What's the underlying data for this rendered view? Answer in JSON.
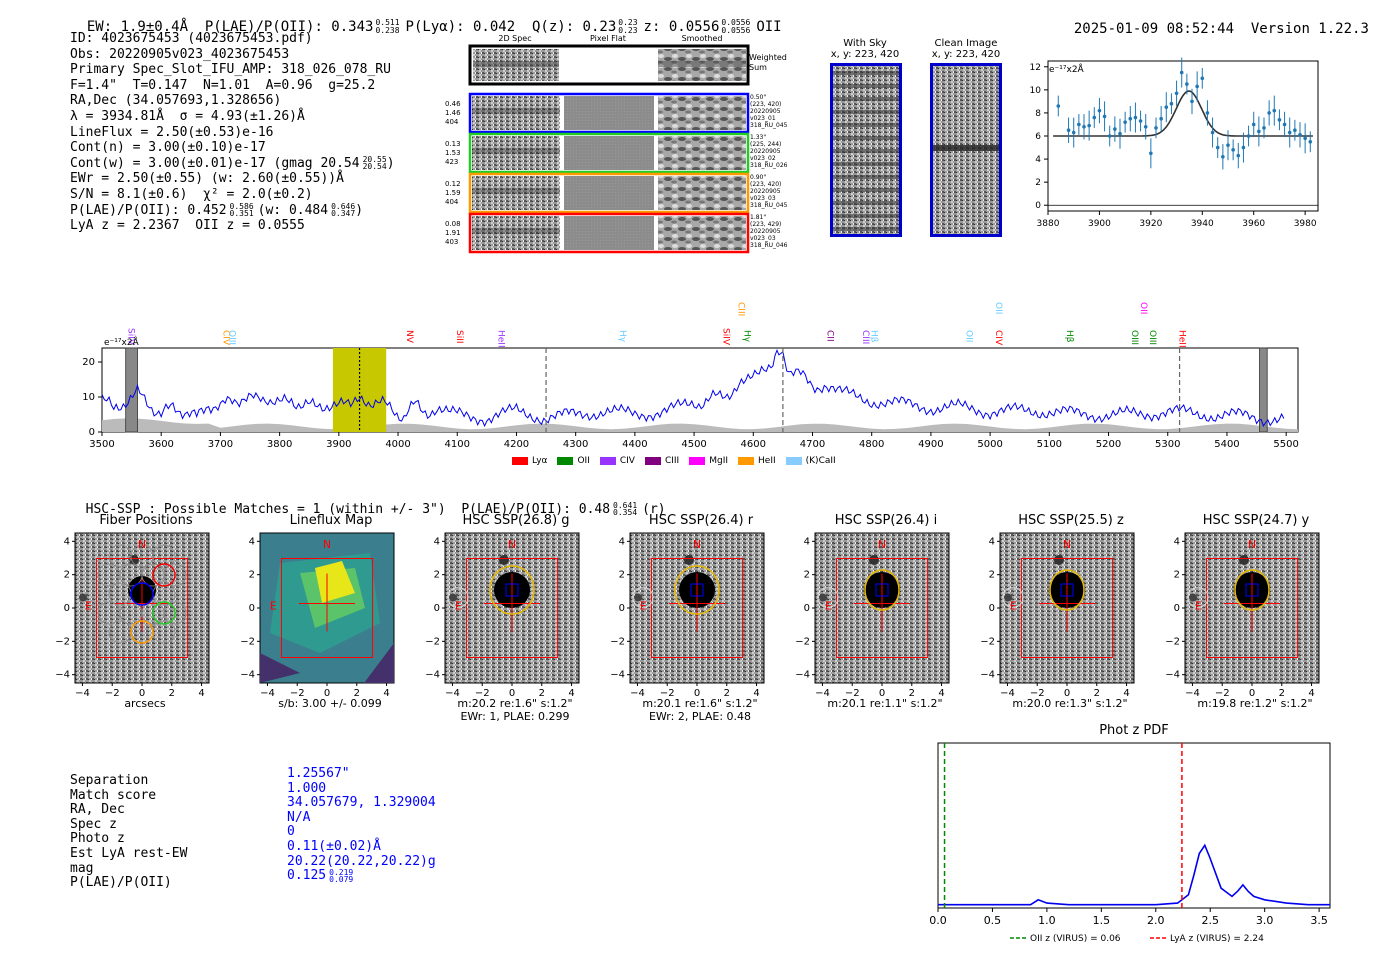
{
  "header": {
    "ew": "EW: 1.9±0.4Å",
    "plae": "P(LAE)/P(OII): 0.343",
    "plae_hi": "0.511",
    "plae_lo": "0.238",
    "plya": "P(Lyα): 0.042",
    "q": "Q(z): 0.23",
    "q_hi": "0.23",
    "q_lo": "0.23",
    "z": "z: 0.0556",
    "z_hi": "0.0556",
    "z_lo": "0.0556",
    "z_line": "OII",
    "datetime": "2025-01-09 08:52:44",
    "version": "Version 1.22.3"
  },
  "info": {
    "id": "ID: 4023675453 (4023675453.pdf)",
    "obs": "Obs: 20220905v023_4023675453",
    "spec": "Primary Spec_Slot_IFU_AMP: 318_026_078_RU",
    "fiber": "F=1.4\"  T=0.147  N=1.01  A=0.96  g=25.2",
    "radec": "RA,Dec (34.057693,1.328656)",
    "lambda": "λ = 3934.81Å  σ = 4.93(±1.26)Å",
    "lineflux": "LineFlux = 2.50(±0.53)e-16",
    "contn": "Cont(n) = 3.00(±0.10)e-17",
    "contw": "Cont(w) = 3.00(±0.01)e-17 (gmag 20.54",
    "contw_hi": "20.55",
    "contw_lo": "20.54",
    "ewr": "EWr = 2.50(±0.55) (w: 2.60(±0.55))Å",
    "sn": "S/N = 8.1(±0.6)  χ² = 2.0(±0.2)",
    "plae": "P(LAE)/P(OII): 0.452",
    "plae_hi": "0.586",
    "plae_lo": "0.351",
    "plae_w": "(w: 0.484",
    "plae_w_hi": "0.646",
    "plae_w_lo": "0.347",
    "lyaz": "LyA z = 2.2367  OII z = 0.0555"
  },
  "cutouts": {
    "col_titles": [
      "2D Spec",
      "Pixel Flat",
      "Smoothed"
    ],
    "weighted_sum": "Weighted Sum",
    "rows": [
      {
        "nums": [
          "0.46",
          "1.46",
          "404"
        ],
        "meta": [
          "0.50\"",
          "(223, 420)",
          "20220905",
          "v023_01",
          "318_RU_045"
        ],
        "color": "#0000ff"
      },
      {
        "nums": [
          "0.13",
          "1.53",
          "423"
        ],
        "meta": [
          "1.33\"",
          "(225, 244)",
          "20220905",
          "v023_02",
          "318_RU_026"
        ],
        "color": "#22cc22"
      },
      {
        "nums": [
          "0.12",
          "1.59",
          "404"
        ],
        "meta": [
          "0.90\"",
          "(223, 420)",
          "20220905",
          "v023_03",
          "318_RU_045"
        ],
        "color": "#ff9900"
      },
      {
        "nums": [
          "0.08",
          "1.91",
          "403"
        ],
        "meta": [
          "1.81\"",
          "(223, 429)",
          "20220905",
          "v023_03",
          "318_RU_046"
        ],
        "color": "#ff0000"
      }
    ]
  },
  "sky": {
    "with_sky_title": "With Sky",
    "with_sky_xy": "x, y: 223, 420",
    "clean_title": "Clean Image",
    "clean_xy": "x, y: 223, 420"
  },
  "fit_chart": {
    "ylabel": "e⁻¹⁷x2Å",
    "xticks": [
      "3880",
      "3900",
      "3920",
      "3940",
      "3960",
      "3980"
    ],
    "yticks": [
      "0",
      "2",
      "4",
      "6",
      "8",
      "10",
      "12"
    ]
  },
  "spectrum": {
    "ylabel": "e⁻¹⁷x2Å",
    "xticks": [
      "3500",
      "3600",
      "3700",
      "3800",
      "3900",
      "4000",
      "4100",
      "4200",
      "4300",
      "4400",
      "4500",
      "4600",
      "4700",
      "4800",
      "4900",
      "5000",
      "5100",
      "5200",
      "5300",
      "5400",
      "5500"
    ],
    "yticks": [
      "0",
      "10",
      "20"
    ],
    "lines": [
      {
        "label": "SiIV",
        "color": "#9933ff"
      },
      {
        "label": "CIV",
        "color": "#ff9900"
      },
      {
        "label": "OIII",
        "color": "#66ccff"
      },
      {
        "label": "NV",
        "color": "#ff0000"
      },
      {
        "label": "SiII",
        "color": "#ff0000"
      },
      {
        "label": "HeII",
        "color": "#9933ff"
      },
      {
        "label": "Hγ",
        "color": "#66ccff"
      },
      {
        "label": "SiIV",
        "color": "#ff0000"
      },
      {
        "label": "CIII",
        "color": "#ff9900"
      },
      {
        "label": "Hγ",
        "color": "#008800"
      },
      {
        "label": "CII",
        "color": "#800080"
      },
      {
        "label": "CIII",
        "color": "#9933ff"
      },
      {
        "label": "Hβ",
        "color": "#66ccff"
      },
      {
        "label": "OII",
        "color": "#66ccff"
      },
      {
        "label": "CIV",
        "color": "#ff0000"
      },
      {
        "label": "OII",
        "color": "#66ccff"
      },
      {
        "label": "Hβ",
        "color": "#008800"
      },
      {
        "label": "OIII",
        "color": "#008800"
      },
      {
        "label": "OII",
        "color": "#ff00ff"
      },
      {
        "label": "OIII",
        "color": "#008800"
      },
      {
        "label": "HeII",
        "color": "#ff0000"
      }
    ],
    "legend": [
      {
        "label": "Lyα",
        "color": "#ff0000"
      },
      {
        "label": "OII",
        "color": "#008800"
      },
      {
        "label": "CIV",
        "color": "#9933ff"
      },
      {
        "label": "CIII",
        "color": "#800080"
      },
      {
        "label": "MgII",
        "color": "#ff00ff"
      },
      {
        "label": "HeII",
        "color": "#ff9900"
      },
      {
        "label": "(K)CaII",
        "color": "#88ccff"
      }
    ]
  },
  "hsc": {
    "header": "HSC-SSP : Possible Matches = 1 (within +/- 3\")  P(LAE)/P(OII): 0.48",
    "header_hi": "0.641",
    "header_lo": "0.354",
    "header_tail": "(r)",
    "panels": [
      {
        "title": "Fiber Positions",
        "cap1": "arcsecs",
        "cap2": ""
      },
      {
        "title": "Lineflux Map",
        "cap1": "s/b: 3.00 +/- 0.099",
        "cap2": ""
      },
      {
        "title": "HSC SSP(26.8) g",
        "cap1": "m:20.2  re:1.6\"  s:1.2\"",
        "cap2": "EWr: 1, PLAE: 0.299"
      },
      {
        "title": "HSC SSP(26.4) r",
        "cap1": "m:20.1  re:1.6\"  s:1.2\"",
        "cap2": "EWr: 2, PLAE: 0.48"
      },
      {
        "title": "HSC SSP(26.4) i",
        "cap1": "m:20.1  re:1.1\"  s:1.2\"",
        "cap2": ""
      },
      {
        "title": "HSC SSP(25.5) z",
        "cap1": "m:20.0  re:1.3\"  s:1.2\"",
        "cap2": ""
      },
      {
        "title": "HSC SSP(24.7) y",
        "cap1": "m:19.8  re:1.2\"  s:1.2\"",
        "cap2": ""
      }
    ],
    "axis_ticks": [
      "-4",
      "-2",
      "0",
      "2",
      "4"
    ],
    "north": "N",
    "east": "E"
  },
  "match_table": {
    "labels": [
      "Separation",
      "Match score",
      "RA, Dec",
      "Spec z",
      "Photo z",
      "Est LyA rest-EW",
      "mag",
      "P(LAE)/P(OII)"
    ],
    "values": [
      "1.25567\"",
      "1.000",
      "34.057679, 1.329004",
      "N/A",
      "0",
      "0.11(±0.02)Å",
      "20.22(20.22,20.22)g",
      "0.125"
    ],
    "plae_hi": "0.219",
    "plae_lo": "0.079"
  },
  "chart_data": [
    {
      "type": "scatter",
      "title": "",
      "ylabel": "e-17x2Å",
      "xlim": [
        3880,
        3985
      ],
      "ylim": [
        -0.5,
        12.5
      ],
      "points": {
        "x": [
          3884,
          3888,
          3890,
          3892,
          3894,
          3896,
          3898,
          3900,
          3902,
          3904,
          3906,
          3908,
          3910,
          3912,
          3914,
          3916,
          3918,
          3920,
          3922,
          3924,
          3926,
          3928,
          3930,
          3932,
          3934,
          3936,
          3938,
          3940,
          3942,
          3944,
          3946,
          3948,
          3950,
          3952,
          3954,
          3956,
          3958,
          3960,
          3962,
          3964,
          3966,
          3968,
          3970,
          3972,
          3974,
          3976,
          3978,
          3980,
          3982
        ],
        "y": [
          8.6,
          6.5,
          6.3,
          7.0,
          6.8,
          6.9,
          7.6,
          8.2,
          7.7,
          6.0,
          6.6,
          6.2,
          7.2,
          7.5,
          7.6,
          7.3,
          6.8,
          4.5,
          6.7,
          7.5,
          8.5,
          8.8,
          9.7,
          11.5,
          10.5,
          9.0,
          10.3,
          11.0,
          8.0,
          6.3,
          5.0,
          4.2,
          5.2,
          4.8,
          4.3,
          5.0,
          6.0,
          7.0,
          6.4,
          6.7,
          8.0,
          8.2,
          7.4,
          7.0,
          6.3,
          6.5,
          6.1,
          5.8,
          5.5
        ]
      },
      "model": {
        "center": 3934.8,
        "sigma": 4.93,
        "amplitude": 3.9,
        "continuum": 6.0
      }
    },
    {
      "type": "line",
      "title": "",
      "ylabel": "e-17x2Å",
      "xlim": [
        3500,
        5520
      ],
      "ylim": [
        0,
        24
      ],
      "x": [
        3500,
        3520,
        3540,
        3560,
        3580,
        3600,
        3620,
        3640,
        3660,
        3680,
        3700,
        3720,
        3740,
        3760,
        3780,
        3800,
        3820,
        3840,
        3860,
        3880,
        3900,
        3920,
        3935,
        3950,
        3970,
        3990,
        4010,
        4030,
        4050,
        4070,
        4100,
        4150,
        4200,
        4250,
        4300,
        4350,
        4400,
        4450,
        4500,
        4540,
        4580,
        4610,
        4630,
        4640,
        4650,
        4660,
        4680,
        4700,
        4720,
        4750,
        4800,
        4850,
        4900,
        4950,
        5000,
        5050,
        5100,
        5150,
        5200,
        5250,
        5300,
        5350,
        5400,
        5450,
        5500
      ],
      "y": [
        10,
        6,
        9,
        11,
        8,
        5,
        7,
        6,
        4,
        8,
        7,
        9,
        10,
        9,
        10,
        8,
        9,
        8,
        7,
        8,
        7,
        9,
        11,
        9,
        8,
        7,
        4,
        8,
        6,
        5,
        5,
        4,
        6,
        4,
        5,
        6,
        5,
        6,
        8,
        10,
        13,
        16,
        20,
        22,
        21,
        18,
        16,
        14,
        12,
        11,
        9,
        8,
        7,
        7,
        6,
        6,
        6,
        5,
        5,
        5,
        6,
        5,
        5,
        4,
        4
      ],
      "highlight_range": [
        3890,
        3980
      ],
      "vlines": [
        3935,
        4250,
        4650,
        5320
      ]
    },
    {
      "type": "line",
      "title": "Phot z PDF",
      "xlim": [
        0,
        3.6
      ],
      "ylim": [
        0,
        1
      ],
      "x": [
        0.0,
        0.5,
        0.85,
        0.92,
        1.0,
        1.2,
        1.5,
        2.0,
        2.2,
        2.3,
        2.35,
        2.4,
        2.45,
        2.5,
        2.6,
        2.7,
        2.75,
        2.8,
        2.85,
        2.9,
        3.0,
        3.2,
        3.4,
        3.6
      ],
      "y": [
        0.02,
        0.02,
        0.02,
        0.05,
        0.03,
        0.02,
        0.02,
        0.02,
        0.03,
        0.08,
        0.2,
        0.33,
        0.38,
        0.3,
        0.12,
        0.07,
        0.1,
        0.14,
        0.1,
        0.07,
        0.05,
        0.03,
        0.02,
        0.02
      ],
      "xticks": [
        "0.0",
        "0.5",
        "1.0",
        "1.5",
        "2.0",
        "2.5",
        "3.0",
        "3.5"
      ],
      "vlines": [
        {
          "x": 0.06,
          "label": "OII z (VIRUS) = 0.06",
          "color": "#008800"
        },
        {
          "x": 2.24,
          "label": "LyA z (VIRUS) = 2.24",
          "color": "#ff0000"
        }
      ]
    }
  ]
}
